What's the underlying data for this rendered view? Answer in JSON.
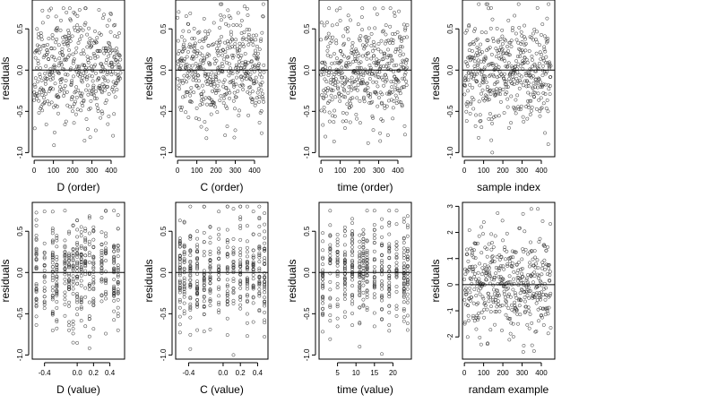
{
  "chart_data": [
    {
      "type": "scatter",
      "xlabel": "D (order)",
      "ylabel": "residuals",
      "xlim": [
        -10,
        470
      ],
      "ylim": [
        -1.05,
        0.85
      ],
      "xticks": [
        0,
        100,
        200,
        300,
        400
      ],
      "xtick_labels": [
        "0",
        "100",
        "200",
        "300",
        "400"
      ],
      "yticks": [
        -1.0,
        -0.5,
        0.0,
        0.5
      ],
      "ytick_labels": [
        "-1.0",
        "-0.5",
        "0.0",
        "0.5"
      ],
      "hline": 0,
      "x_kind": "index",
      "y_range": [
        -1.0,
        0.75
      ],
      "y_spread": 0.32,
      "n": 450,
      "seed": 11
    },
    {
      "type": "scatter",
      "xlabel": "C (order)",
      "ylabel": "residuals",
      "xlim": [
        -10,
        470
      ],
      "ylim": [
        -1.05,
        0.85
      ],
      "xticks": [
        0,
        100,
        200,
        300,
        400
      ],
      "xtick_labels": [
        "0",
        "100",
        "200",
        "300",
        "400"
      ],
      "yticks": [
        -1.0,
        -0.5,
        0.0,
        0.5
      ],
      "ytick_labels": [
        "-1.0",
        "-0.5",
        "0.0",
        "0.5"
      ],
      "hline": 0,
      "x_kind": "index",
      "y_range": [
        -1.0,
        0.8
      ],
      "y_spread": 0.32,
      "n": 450,
      "seed": 23
    },
    {
      "type": "scatter",
      "xlabel": "time (order)",
      "ylabel": "residuals",
      "xlim": [
        -10,
        470
      ],
      "ylim": [
        -1.05,
        0.85
      ],
      "xticks": [
        0,
        100,
        200,
        300,
        400
      ],
      "xtick_labels": [
        "0",
        "100",
        "200",
        "300",
        "400"
      ],
      "yticks": [
        -1.0,
        -0.5,
        0.0,
        0.5
      ],
      "ytick_labels": [
        "-1.0",
        "-0.5",
        "0.0",
        "0.5"
      ],
      "hline": 0,
      "x_kind": "index",
      "y_range": [
        -1.0,
        0.75
      ],
      "y_spread": 0.32,
      "n": 450,
      "seed": 37
    },
    {
      "type": "scatter",
      "xlabel": "sample index",
      "ylabel": "residuals",
      "xlim": [
        -10,
        470
      ],
      "ylim": [
        -1.05,
        0.85
      ],
      "xticks": [
        0,
        100,
        200,
        300,
        400
      ],
      "xtick_labels": [
        "0",
        "100",
        "200",
        "300",
        "400"
      ],
      "yticks": [
        -1.0,
        -0.5,
        0.0,
        0.5
      ],
      "ytick_labels": [
        "-1.0",
        "-0.5",
        "0.0",
        "0.5"
      ],
      "hline": 0,
      "x_kind": "index",
      "y_range": [
        -1.0,
        0.8
      ],
      "y_spread": 0.32,
      "n": 450,
      "seed": 41
    },
    {
      "type": "scatter",
      "xlabel": "D (value)",
      "ylabel": "residuals",
      "xlim": [
        -0.55,
        0.58
      ],
      "ylim": [
        -1.05,
        0.85
      ],
      "xticks": [
        -0.4,
        0.0,
        0.2,
        0.4
      ],
      "xtick_labels": [
        "-0.4",
        "0.0",
        "0.2",
        "0.4"
      ],
      "yticks": [
        -1.0,
        -0.5,
        0.0,
        0.5
      ],
      "ytick_labels": [
        "-1.0",
        "-0.5",
        "0.0",
        "0.5"
      ],
      "hline": 0,
      "x_kind": "columns",
      "x_columns": [
        -0.5,
        -0.4,
        -0.3,
        -0.25,
        -0.15,
        -0.1,
        -0.05,
        0.0,
        0.05,
        0.1,
        0.15,
        0.2,
        0.3,
        0.35,
        0.45,
        0.5
      ],
      "y_range": [
        -1.0,
        0.75
      ],
      "y_spread": 0.32,
      "n": 450,
      "seed": 53
    },
    {
      "type": "scatter",
      "xlabel": "C (value)",
      "ylabel": "residuals",
      "xlim": [
        -0.55,
        0.52
      ],
      "ylim": [
        -1.05,
        0.85
      ],
      "xticks": [
        -0.4,
        0.0,
        0.2,
        0.4
      ],
      "xtick_labels": [
        "-0.4",
        "0.0",
        "0.2",
        "0.4"
      ],
      "yticks": [
        -1.0,
        -0.5,
        0.0,
        0.5
      ],
      "ytick_labels": [
        "-1.0",
        "-0.5",
        "0.0",
        "0.5"
      ],
      "hline": 0,
      "x_kind": "columns",
      "x_columns": [
        -0.5,
        -0.45,
        -0.38,
        -0.3,
        -0.22,
        -0.15,
        -0.05,
        0.05,
        0.12,
        0.2,
        0.28,
        0.35,
        0.42,
        0.48
      ],
      "y_range": [
        -1.0,
        0.8
      ],
      "y_spread": 0.32,
      "n": 450,
      "seed": 67
    },
    {
      "type": "scatter",
      "xlabel": "time (value)",
      "ylabel": "residuals",
      "xlim": [
        0,
        25
      ],
      "ylim": [
        -1.05,
        0.85
      ],
      "xticks": [
        5,
        10,
        15,
        20
      ],
      "xtick_labels": [
        "5",
        "10",
        "15",
        "20"
      ],
      "yticks": [
        -1.0,
        -0.5,
        0.0,
        0.5
      ],
      "ytick_labels": [
        "-1.0",
        "-0.5",
        "0.0",
        "0.5"
      ],
      "hline": 0,
      "x_kind": "columns",
      "x_columns": [
        1,
        3,
        5,
        7,
        9,
        11,
        12,
        13,
        15,
        17,
        19,
        21,
        23,
        24
      ],
      "y_range": [
        -1.0,
        0.75
      ],
      "y_spread": 0.32,
      "n": 450,
      "seed": 79
    },
    {
      "type": "scatter",
      "xlabel": "randam example",
      "ylabel": "residuals",
      "xlim": [
        -10,
        470
      ],
      "ylim": [
        -2.85,
        3.15
      ],
      "xticks": [
        0,
        100,
        200,
        300,
        400
      ],
      "xtick_labels": [
        "0",
        "100",
        "200",
        "300",
        "400"
      ],
      "yticks": [
        -2,
        -1,
        0,
        1,
        2,
        3
      ],
      "ytick_labels": [
        "-2",
        "-1",
        "0",
        "1",
        "2",
        "3"
      ],
      "hline": 0,
      "x_kind": "index",
      "y_range": [
        -2.6,
        2.9
      ],
      "y_spread": 1.0,
      "n": 450,
      "seed": 97
    }
  ]
}
